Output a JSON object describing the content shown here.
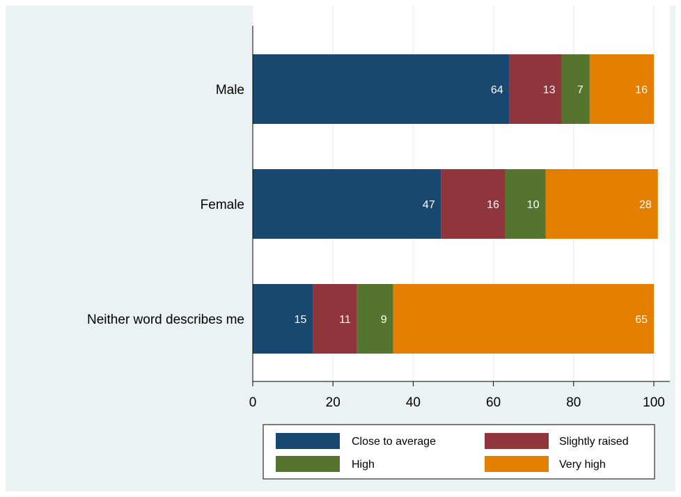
{
  "chart_data": {
    "type": "bar",
    "orientation": "horizontal",
    "stacked": true,
    "categories": [
      "Male",
      "Female",
      "Neither word describes me"
    ],
    "series": [
      {
        "name": "Close to average",
        "color": "#1a476f",
        "values": [
          64,
          47,
          15
        ]
      },
      {
        "name": "Slightly raised",
        "color": "#90353b",
        "values": [
          13,
          16,
          11
        ]
      },
      {
        "name": "High",
        "color": "#55752f",
        "values": [
          7,
          10,
          9
        ]
      },
      {
        "name": "Very high",
        "color": "#e37e00",
        "values": [
          16,
          28,
          65
        ]
      }
    ],
    "xlim": [
      0,
      100
    ],
    "xticks": [
      "0",
      "20",
      "40",
      "60",
      "80",
      "100"
    ],
    "grid": true,
    "legend_position": "bottom",
    "show_value_labels": true
  },
  "colors": {
    "plot_background": "#ffffff",
    "figure_background": "#eaf2f3",
    "gridline": "#eaf2f3"
  }
}
